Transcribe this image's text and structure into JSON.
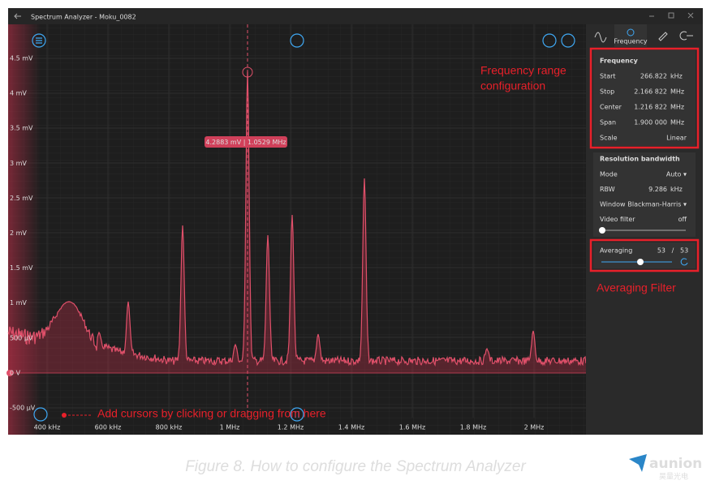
{
  "window": {
    "title": "Spectrum Analyzer - Moku_0082"
  },
  "plot": {
    "y_axis_labels": [
      "4.5 mV",
      "4 mV",
      "3.5 mV",
      "3 mV",
      "2.5 mV",
      "2 mV",
      "1.5 mV",
      "1 mV",
      "500 µV",
      "0 V",
      "-500 µV"
    ],
    "x_axis_labels": [
      "400 kHz",
      "600 kHz",
      "800 kHz",
      "1 MHz",
      "1.2 MHz",
      "1.4 MHz",
      "1.6 MHz",
      "1.8 MHz",
      "2 MHz"
    ],
    "cursor_label": "4.2883 mV | 1.0529 MHz"
  },
  "annotations": {
    "frequency": [
      "Frequency range",
      "configuration"
    ],
    "averaging": "Averaging Filter",
    "cursors": "Add cursors by clicking or dragging from here"
  },
  "panel": {
    "active_tab": "Frequency",
    "frequency": {
      "title": "Frequency",
      "rows": [
        {
          "label": "Start",
          "value": "266.822",
          "unit": "kHz"
        },
        {
          "label": "Stop",
          "value": "2.166 822",
          "unit": "MHz"
        },
        {
          "label": "Center",
          "value": "1.216 822",
          "unit": "MHz"
        },
        {
          "label": "Span",
          "value": "1.900 000",
          "unit": "MHz"
        },
        {
          "label": "Scale",
          "value": "Linear",
          "unit": ""
        }
      ]
    },
    "bandwidth": {
      "title": "Resolution bandwidth",
      "rows": [
        {
          "label": "Mode",
          "value": "Auto ▾",
          "unit": ""
        },
        {
          "label": "RBW",
          "value": "9.286",
          "unit": "kHz"
        },
        {
          "label": "Window",
          "value": "Blackman-Harris ▾",
          "unit": ""
        },
        {
          "label": "Video filter",
          "value": "off",
          "unit": ""
        }
      ]
    },
    "averaging": {
      "label": "Averaging",
      "value": "53",
      "separator": "/",
      "total": "53"
    }
  },
  "caption": "Figure 8. How to configure the Spectrum Analyzer",
  "logo": {
    "name": "aunion",
    "subtitle": "昊量光电"
  }
}
